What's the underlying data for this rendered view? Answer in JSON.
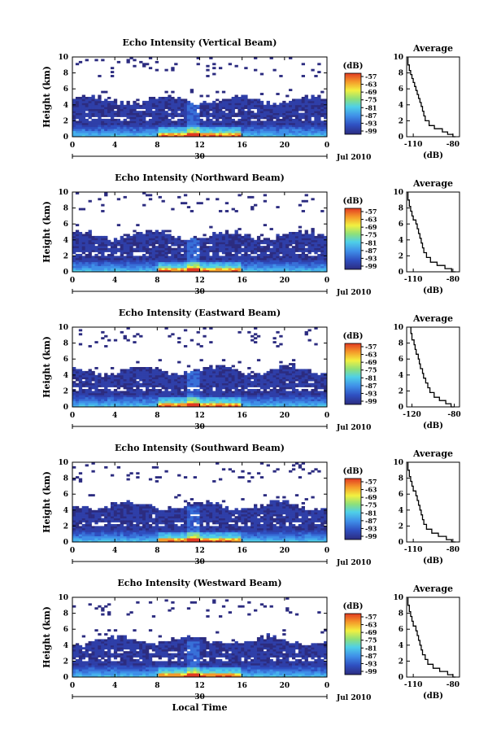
{
  "chart_data": [
    {
      "type": "heatmap",
      "title": "Echo Intensity (Vertical Beam)",
      "ylabel": "Height (km)",
      "ylim": [
        0,
        10
      ],
      "yticks": [
        "0",
        "2",
        "4",
        "6",
        "8",
        "10"
      ],
      "xlim": [
        0,
        24
      ],
      "xticks": [
        "0",
        "4",
        "8",
        "12",
        "16",
        "20",
        "0"
      ],
      "date_day": "30",
      "date_label": "Jul 2010",
      "colorbar": {
        "unit": "(dB)",
        "ticks": [
          "-57",
          "-63",
          "-69",
          "-75",
          "-81",
          "-87",
          "-93",
          "-99"
        ]
      },
      "average": {
        "title": "Average",
        "xlabel": "(dB)",
        "xticks": [
          "-110",
          "-80"
        ],
        "xlim": [
          -115,
          -75
        ],
        "ylim": [
          0,
          10
        ],
        "yticks": [
          "0",
          "2",
          "4",
          "6",
          "8",
          "10"
        ],
        "profile": [
          [
            -78,
            0.0
          ],
          [
            -80,
            0.3
          ],
          [
            -84,
            0.6
          ],
          [
            -88,
            1.0
          ],
          [
            -94,
            1.4
          ],
          [
            -98,
            2.0
          ],
          [
            -101,
            2.6
          ],
          [
            -102,
            3.2
          ],
          [
            -103,
            3.8
          ],
          [
            -104,
            4.3
          ],
          [
            -105,
            4.8
          ],
          [
            -106,
            5.3
          ],
          [
            -107,
            5.8
          ],
          [
            -108,
            6.3
          ],
          [
            -109,
            6.8
          ],
          [
            -110,
            7.3
          ],
          [
            -111,
            7.8
          ],
          [
            -112,
            8.3
          ],
          [
            -113,
            9.0
          ],
          [
            -114,
            10.0
          ]
        ]
      }
    },
    {
      "type": "heatmap",
      "title": "Echo Intensity (Northward Beam)",
      "ylabel": "Height (km)",
      "ylim": [
        0,
        10
      ],
      "yticks": [
        "0",
        "2",
        "4",
        "6",
        "8",
        "10"
      ],
      "xlim": [
        0,
        24
      ],
      "xticks": [
        "0",
        "4",
        "8",
        "12",
        "16",
        "20",
        "0"
      ],
      "date_day": "30",
      "date_label": "Jul 2010",
      "colorbar": {
        "unit": "(dB)",
        "ticks": [
          "-57",
          "-63",
          "-69",
          "-75",
          "-81",
          "-87",
          "-93",
          "-99"
        ]
      },
      "average": {
        "title": "Average",
        "xlabel": "(dB)",
        "xticks": [
          "-110",
          "-80"
        ],
        "xlim": [
          -115,
          -75
        ],
        "ylim": [
          0,
          10
        ],
        "yticks": [
          "0",
          "2",
          "4",
          "6",
          "8",
          "10"
        ],
        "profile": [
          [
            -78,
            0.0
          ],
          [
            -81,
            0.4
          ],
          [
            -86,
            0.8
          ],
          [
            -92,
            1.2
          ],
          [
            -97,
            1.8
          ],
          [
            -100,
            2.4
          ],
          [
            -102,
            3.0
          ],
          [
            -103,
            3.6
          ],
          [
            -104,
            4.2
          ],
          [
            -105,
            4.8
          ],
          [
            -106,
            5.4
          ],
          [
            -107,
            6.0
          ],
          [
            -108,
            6.5
          ],
          [
            -110,
            7.0
          ],
          [
            -111,
            7.6
          ],
          [
            -112,
            8.2
          ],
          [
            -113,
            9.0
          ],
          [
            -114,
            10.0
          ]
        ]
      }
    },
    {
      "type": "heatmap",
      "title": "Echo Intensity (Eastward Beam)",
      "ylabel": "Height (km)",
      "ylim": [
        0,
        10
      ],
      "yticks": [
        "0",
        "2",
        "4",
        "6",
        "8",
        "10"
      ],
      "xlim": [
        0,
        24
      ],
      "xticks": [
        "0",
        "4",
        "8",
        "12",
        "16",
        "20",
        "0"
      ],
      "date_day": "30",
      "date_label": "Jul 2010",
      "colorbar": {
        "unit": "(dB)",
        "ticks": [
          "-57",
          "-63",
          "-69",
          "-75",
          "-81",
          "-87",
          "-93",
          "-99"
        ]
      },
      "average": {
        "title": "Average",
        "xlabel": "(dB)",
        "xticks": [
          "-120",
          "-80"
        ],
        "xlim": [
          -125,
          -75
        ],
        "ylim": [
          0,
          10
        ],
        "yticks": [
          "0",
          "2",
          "4",
          "6",
          "8",
          "10"
        ],
        "profile": [
          [
            -80,
            0.0
          ],
          [
            -83,
            0.4
          ],
          [
            -88,
            0.8
          ],
          [
            -94,
            1.2
          ],
          [
            -99,
            1.8
          ],
          [
            -103,
            2.4
          ],
          [
            -105,
            3.0
          ],
          [
            -107,
            3.6
          ],
          [
            -109,
            4.2
          ],
          [
            -110,
            4.8
          ],
          [
            -112,
            5.4
          ],
          [
            -113,
            6.0
          ],
          [
            -114,
            6.6
          ],
          [
            -116,
            7.2
          ],
          [
            -117,
            7.8
          ],
          [
            -118,
            8.4
          ],
          [
            -120,
            9.2
          ],
          [
            -121,
            10.0
          ]
        ]
      }
    },
    {
      "type": "heatmap",
      "title": "Echo Intensity (Southward Beam)",
      "ylabel": "Height (km)",
      "ylim": [
        0,
        10
      ],
      "yticks": [
        "0",
        "2",
        "4",
        "6",
        "8",
        "10"
      ],
      "xlim": [
        0,
        24
      ],
      "xticks": [
        "0",
        "4",
        "8",
        "12",
        "16",
        "20",
        "0"
      ],
      "date_day": "30",
      "date_label": "Jul 2010",
      "colorbar": {
        "unit": "(dB)",
        "ticks": [
          "-57",
          "-63",
          "-69",
          "-75",
          "-81",
          "-87",
          "-93",
          "-99"
        ]
      },
      "average": {
        "title": "Average",
        "xlabel": "(dB)",
        "xticks": [
          "-110",
          "-80"
        ],
        "xlim": [
          -115,
          -75
        ],
        "ylim": [
          0,
          10
        ],
        "yticks": [
          "0",
          "2",
          "4",
          "6",
          "8",
          "10"
        ],
        "profile": [
          [
            -78,
            0.0
          ],
          [
            -81,
            0.3
          ],
          [
            -85,
            0.7
          ],
          [
            -91,
            1.1
          ],
          [
            -96,
            1.6
          ],
          [
            -100,
            2.2
          ],
          [
            -102,
            2.8
          ],
          [
            -103,
            3.4
          ],
          [
            -104,
            4.0
          ],
          [
            -105,
            4.6
          ],
          [
            -106,
            5.2
          ],
          [
            -107,
            5.8
          ],
          [
            -108,
            6.4
          ],
          [
            -110,
            7.0
          ],
          [
            -111,
            7.6
          ],
          [
            -112,
            8.2
          ],
          [
            -113,
            9.0
          ],
          [
            -114,
            10.0
          ]
        ]
      }
    },
    {
      "type": "heatmap",
      "title": "Echo Intensity (Westward Beam)",
      "ylabel": "Height (km)",
      "ylim": [
        0,
        10
      ],
      "yticks": [
        "0",
        "2",
        "4",
        "6",
        "8",
        "10"
      ],
      "xlim": [
        0,
        24
      ],
      "xticks": [
        "0",
        "4",
        "8",
        "12",
        "16",
        "20",
        "0"
      ],
      "date_day": "30",
      "date_label": "Jul 2010",
      "xlabel": "Local Time",
      "colorbar": {
        "unit": "(dB)",
        "ticks": [
          "-57",
          "-63",
          "-69",
          "-75",
          "-81",
          "-87",
          "-93",
          "-99"
        ]
      },
      "average": {
        "title": "Average",
        "xlabel": "(dB)",
        "xticks": [
          "-110",
          "-80"
        ],
        "xlim": [
          -115,
          -75
        ],
        "ylim": [
          0,
          10
        ],
        "yticks": [
          "0",
          "2",
          "4",
          "6",
          "8",
          "10"
        ],
        "profile": [
          [
            -78,
            0.0
          ],
          [
            -80,
            0.3
          ],
          [
            -84,
            0.7
          ],
          [
            -90,
            1.1
          ],
          [
            -95,
            1.6
          ],
          [
            -99,
            2.2
          ],
          [
            -101,
            2.8
          ],
          [
            -103,
            3.4
          ],
          [
            -104,
            4.0
          ],
          [
            -105,
            4.6
          ],
          [
            -106,
            5.2
          ],
          [
            -107,
            5.8
          ],
          [
            -108,
            6.4
          ],
          [
            -110,
            7.0
          ],
          [
            -111,
            7.6
          ],
          [
            -112,
            8.2
          ],
          [
            -113,
            9.0
          ],
          [
            -114,
            10.0
          ]
        ]
      }
    }
  ]
}
